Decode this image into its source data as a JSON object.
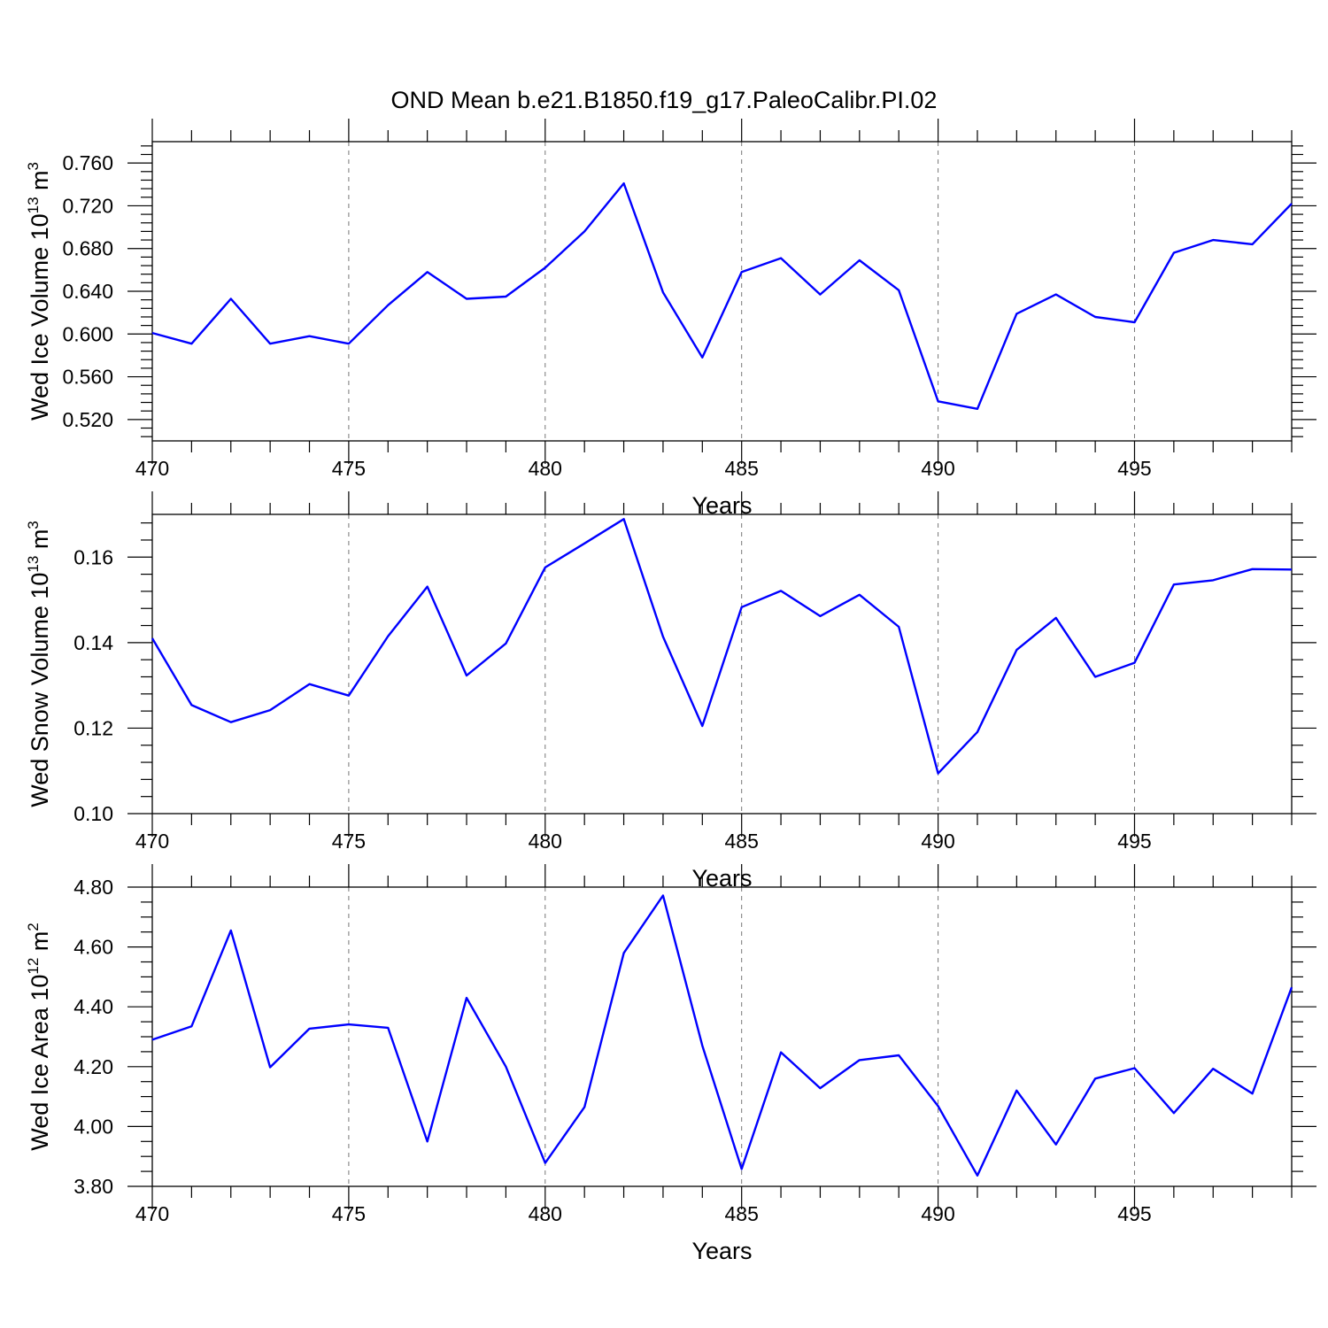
{
  "title": "OND Mean b.e21.B1850.f19_g17.PaleoCalibr.PI.02",
  "line_color": "#0000ff",
  "chart_data": [
    {
      "type": "line",
      "ylabel": {
        "text": "Wed Ice Volume 10",
        "exp": "13",
        "unit_text": " m",
        "unit_exp": "3"
      },
      "xlabel": "Years",
      "xlim": [
        470,
        499
      ],
      "ylim": [
        0.5,
        0.78
      ],
      "ymajor": [
        0.52,
        0.56,
        0.6,
        0.64,
        0.68,
        0.72,
        0.76
      ],
      "ytick_labels": [
        "0.520",
        "0.560",
        "0.600",
        "0.640",
        "0.680",
        "0.720",
        "0.760"
      ],
      "yminor_step": 0.008,
      "xtick_values": [
        470,
        475,
        480,
        485,
        490,
        495
      ],
      "xtick_labels": [
        "470",
        "475",
        "480",
        "485",
        "490",
        "495"
      ],
      "grid": "vertical dashed at major x ticks",
      "x": [
        470,
        471,
        472,
        473,
        474,
        475,
        476,
        477,
        478,
        479,
        480,
        481,
        482,
        483,
        484,
        485,
        486,
        487,
        488,
        489,
        490,
        491,
        492,
        493,
        494,
        495,
        496,
        497,
        498,
        499
      ],
      "values": [
        0.601,
        0.591,
        0.633,
        0.591,
        0.598,
        0.591,
        0.627,
        0.658,
        0.633,
        0.635,
        0.662,
        0.696,
        0.741,
        0.639,
        0.578,
        0.658,
        0.671,
        0.637,
        0.669,
        0.641,
        0.537,
        0.53,
        0.619,
        0.637,
        0.616,
        0.611,
        0.676,
        0.688,
        0.684,
        0.722
      ]
    },
    {
      "type": "line",
      "ylabel": {
        "text": "Wed Snow Volume 10",
        "exp": "13",
        "unit_text": " m",
        "unit_exp": "3"
      },
      "xlabel": "Years",
      "xlim": [
        470,
        499
      ],
      "ylim": [
        0.1,
        0.17
      ],
      "ymajor": [
        0.1,
        0.12,
        0.14,
        0.16
      ],
      "ytick_labels": [
        "0.10",
        "0.12",
        "0.14",
        "0.16"
      ],
      "yminor_step": 0.004,
      "xtick_values": [
        470,
        475,
        480,
        485,
        490,
        495
      ],
      "xtick_labels": [
        "470",
        "475",
        "480",
        "485",
        "490",
        "495"
      ],
      "grid": "vertical dashed at major x ticks",
      "x": [
        470,
        471,
        472,
        473,
        474,
        475,
        476,
        477,
        478,
        479,
        480,
        481,
        482,
        483,
        484,
        485,
        486,
        487,
        488,
        489,
        490,
        491,
        492,
        493,
        494,
        495,
        496,
        497,
        498,
        499
      ],
      "values": [
        0.141,
        0.1254,
        0.1214,
        0.1242,
        0.1303,
        0.1276,
        0.1415,
        0.1531,
        0.1323,
        0.1398,
        0.1576,
        0.1632,
        0.1689,
        0.1414,
        0.1205,
        0.1483,
        0.1521,
        0.1462,
        0.1512,
        0.1437,
        0.1094,
        0.1191,
        0.1383,
        0.1458,
        0.132,
        0.1353,
        0.1536,
        0.1546,
        0.1572,
        0.1571
      ]
    },
    {
      "type": "line",
      "ylabel": {
        "text": "Wed Ice Area 10",
        "exp": "12",
        "unit_text": " m",
        "unit_exp": "2"
      },
      "xlabel": "Years",
      "xlim": [
        470,
        499
      ],
      "ylim": [
        3.8,
        4.8
      ],
      "ymajor": [
        3.8,
        4.0,
        4.2,
        4.4,
        4.6,
        4.8
      ],
      "ytick_labels": [
        "3.80",
        "4.00",
        "4.20",
        "4.40",
        "4.60",
        "4.80"
      ],
      "yminor_step": 0.05,
      "xtick_values": [
        470,
        475,
        480,
        485,
        490,
        495
      ],
      "xtick_labels": [
        "470",
        "475",
        "480",
        "485",
        "490",
        "495"
      ],
      "grid": "vertical dashed at major x ticks",
      "x": [
        470,
        471,
        472,
        473,
        474,
        475,
        476,
        477,
        478,
        479,
        480,
        481,
        482,
        483,
        484,
        485,
        486,
        487,
        488,
        489,
        490,
        491,
        492,
        493,
        494,
        495,
        496,
        497,
        498,
        499
      ],
      "values": [
        4.29,
        4.335,
        4.655,
        4.198,
        4.327,
        4.341,
        4.33,
        3.95,
        4.43,
        4.2,
        3.878,
        4.065,
        4.58,
        4.772,
        4.27,
        3.858,
        4.248,
        4.128,
        4.222,
        4.238,
        4.068,
        3.836,
        4.12,
        3.94,
        4.16,
        4.195,
        4.045,
        4.193,
        4.11,
        4.465
      ]
    }
  ]
}
